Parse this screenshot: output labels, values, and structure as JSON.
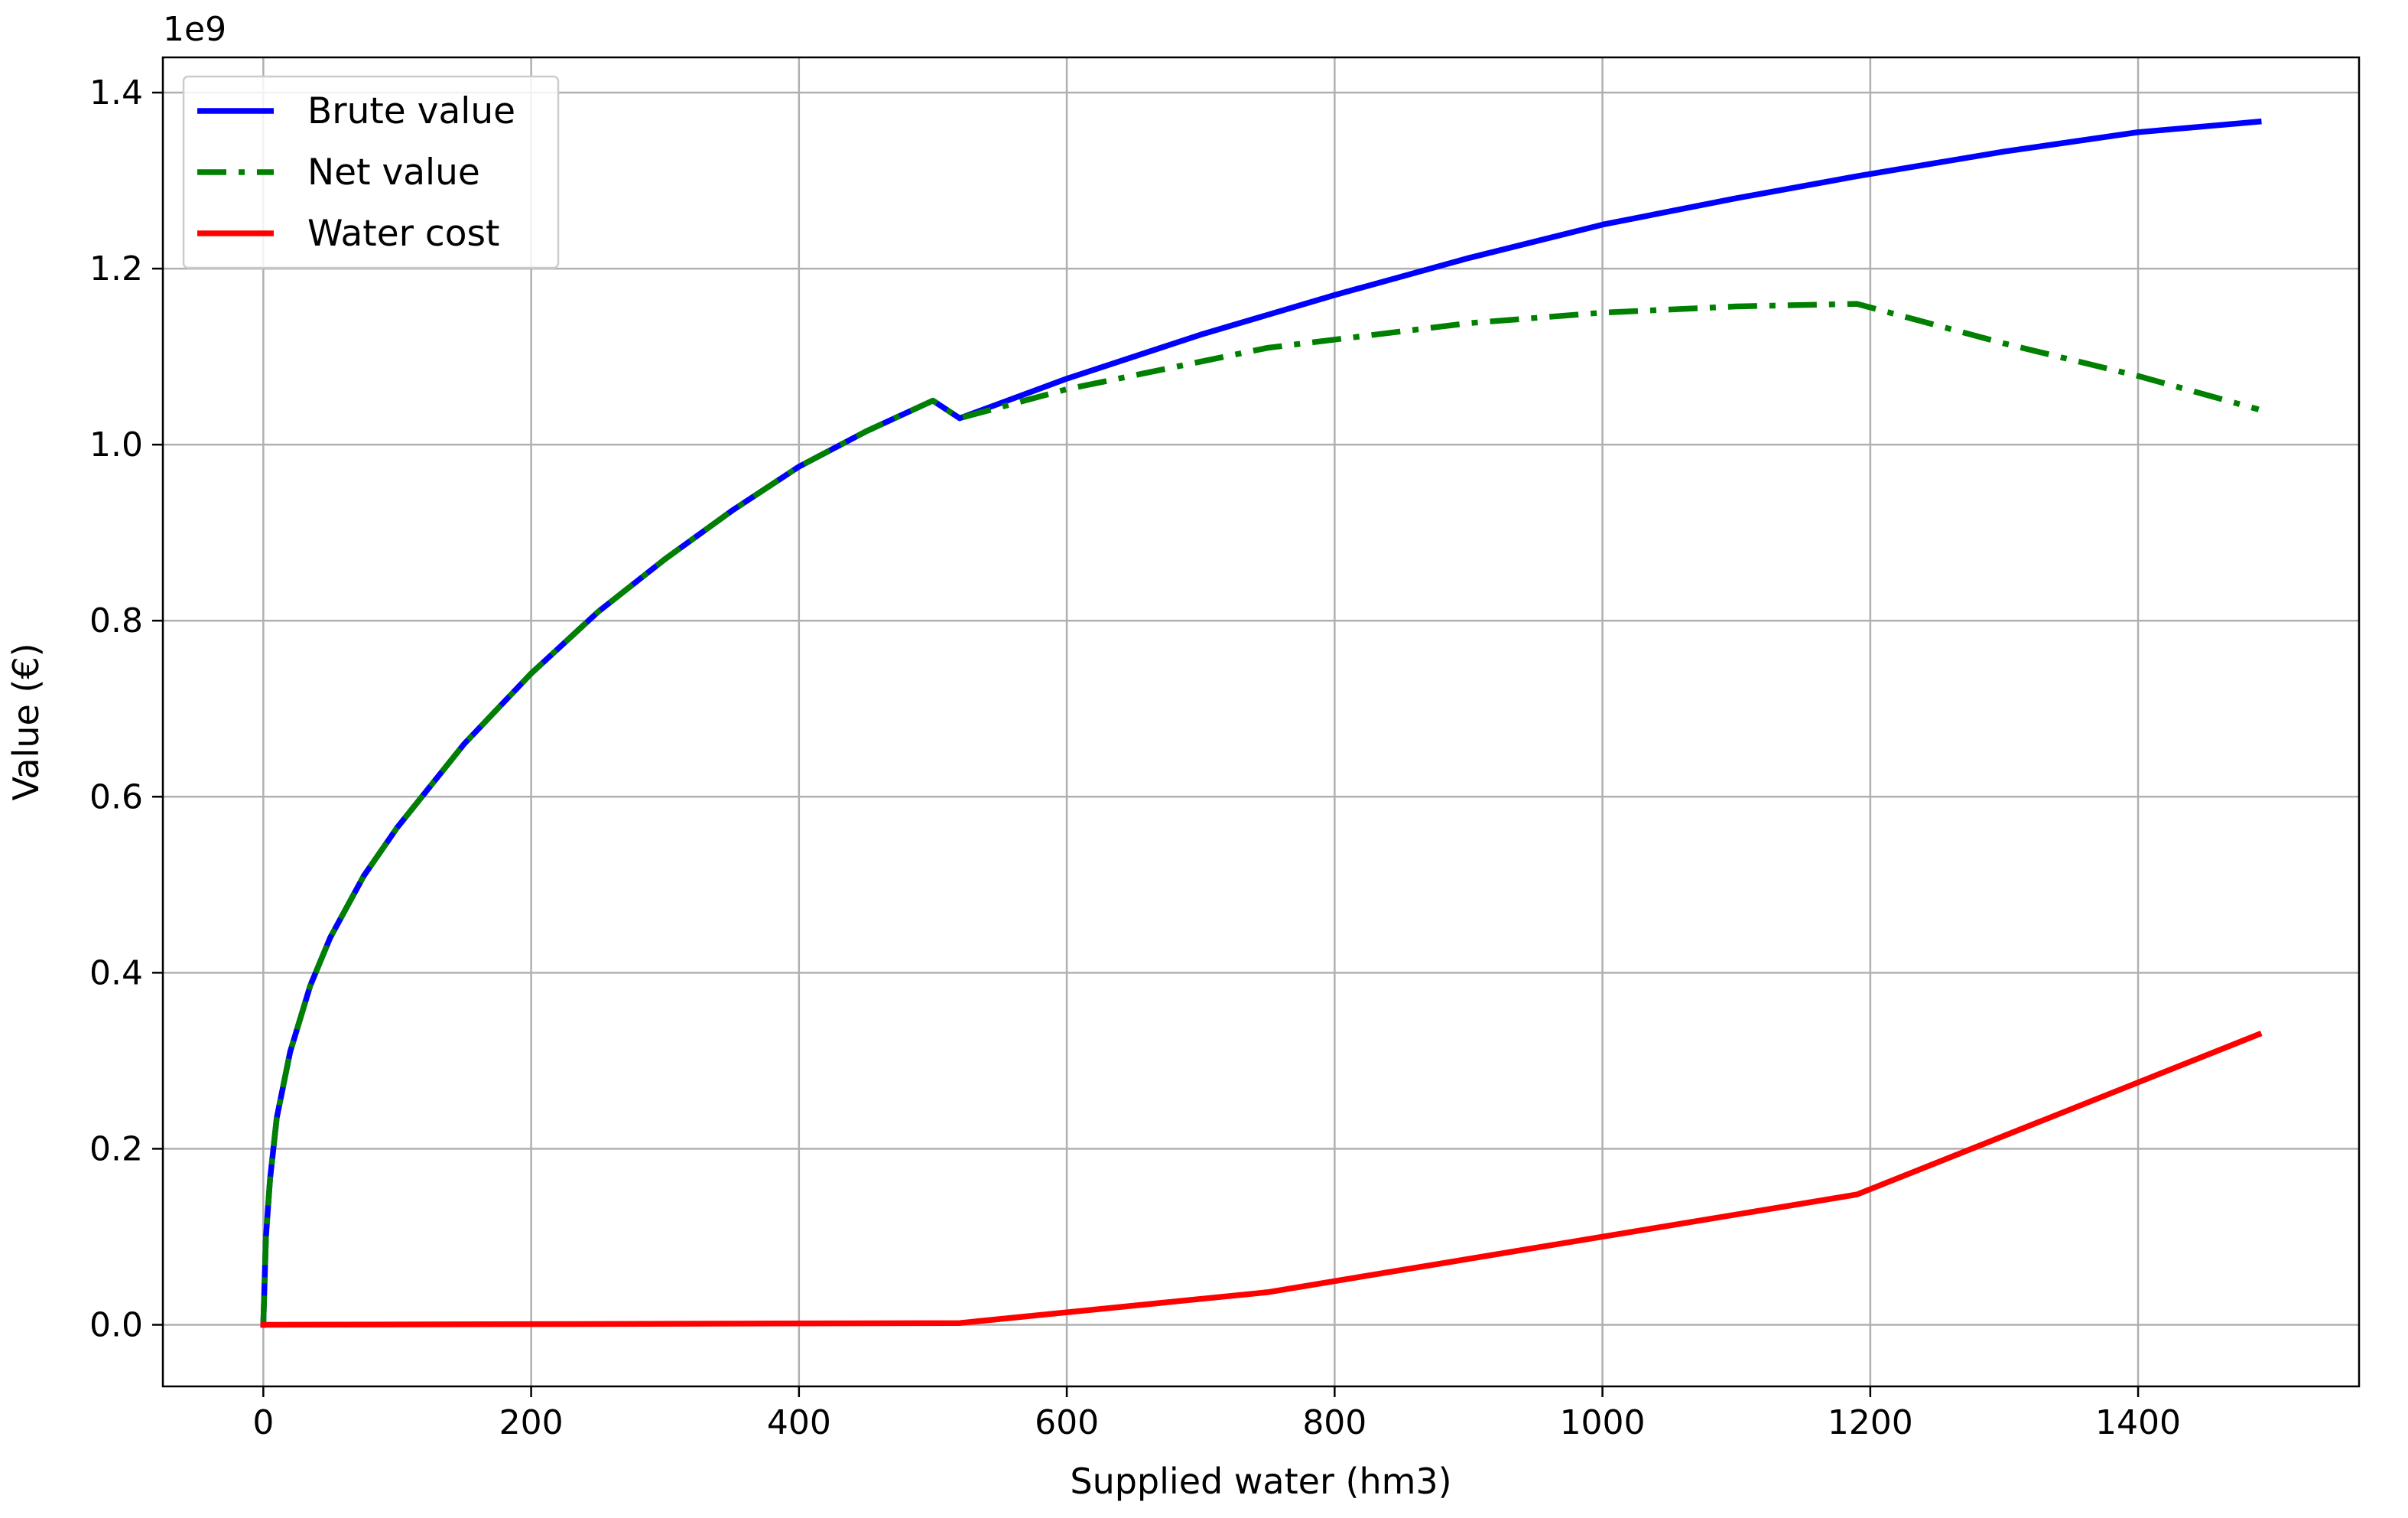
{
  "chart_data": {
    "type": "line",
    "title": "",
    "xlabel": "Supplied water (hm3)",
    "ylabel": "Value (€)",
    "y_offset_label": "1e9",
    "xlim": [
      -75,
      1565
    ],
    "ylim": [
      -0.07,
      1.44
    ],
    "x_ticks": [
      0,
      200,
      400,
      600,
      800,
      1000,
      1200,
      1400
    ],
    "x_tick_labels": [
      "0",
      "200",
      "400",
      "600",
      "800",
      "1000",
      "1200",
      "1400"
    ],
    "y_ticks": [
      0.0,
      0.2,
      0.4,
      0.6,
      0.8,
      1.0,
      1.2,
      1.4
    ],
    "y_tick_labels": [
      "0.0",
      "0.2",
      "0.4",
      "0.6",
      "0.8",
      "1.0",
      "1.2",
      "1.4"
    ],
    "grid": true,
    "legend_position": "top-left",
    "series": [
      {
        "name": "Brute value",
        "color": "#0000ff",
        "line_style": "solid",
        "x": [
          0,
          2,
          5,
          10,
          20,
          35,
          50,
          75,
          100,
          150,
          200,
          250,
          300,
          350,
          400,
          450,
          500,
          520,
          600,
          700,
          800,
          900,
          1000,
          1100,
          1190,
          1300,
          1400,
          1490
        ],
        "y": [
          0.0,
          0.1,
          0.165,
          0.235,
          0.31,
          0.385,
          0.44,
          0.51,
          0.565,
          0.66,
          0.74,
          0.81,
          0.87,
          0.925,
          0.975,
          1.015,
          1.05,
          1.03,
          1.075,
          1.125,
          1.17,
          1.212,
          1.25,
          1.28,
          1.305,
          1.333,
          1.355,
          1.367
        ]
      },
      {
        "name": "Net value",
        "color": "#008000",
        "line_style": "dashdot",
        "x": [
          0,
          2,
          5,
          10,
          20,
          35,
          50,
          75,
          100,
          150,
          200,
          250,
          300,
          350,
          400,
          450,
          500,
          520,
          600,
          750,
          900,
          1000,
          1100,
          1190,
          1300,
          1400,
          1490
        ],
        "y": [
          0.0,
          0.1,
          0.165,
          0.235,
          0.31,
          0.385,
          0.44,
          0.51,
          0.565,
          0.66,
          0.74,
          0.81,
          0.87,
          0.925,
          0.975,
          1.015,
          1.05,
          1.03,
          1.063,
          1.11,
          1.138,
          1.15,
          1.157,
          1.16,
          1.115,
          1.078,
          1.04
        ]
      },
      {
        "name": "Water cost",
        "color": "#ff0000",
        "line_style": "solid",
        "x": [
          0,
          520,
          750,
          1190,
          1490
        ],
        "y": [
          0.0,
          0.002,
          0.037,
          0.148,
          0.33
        ]
      }
    ]
  }
}
